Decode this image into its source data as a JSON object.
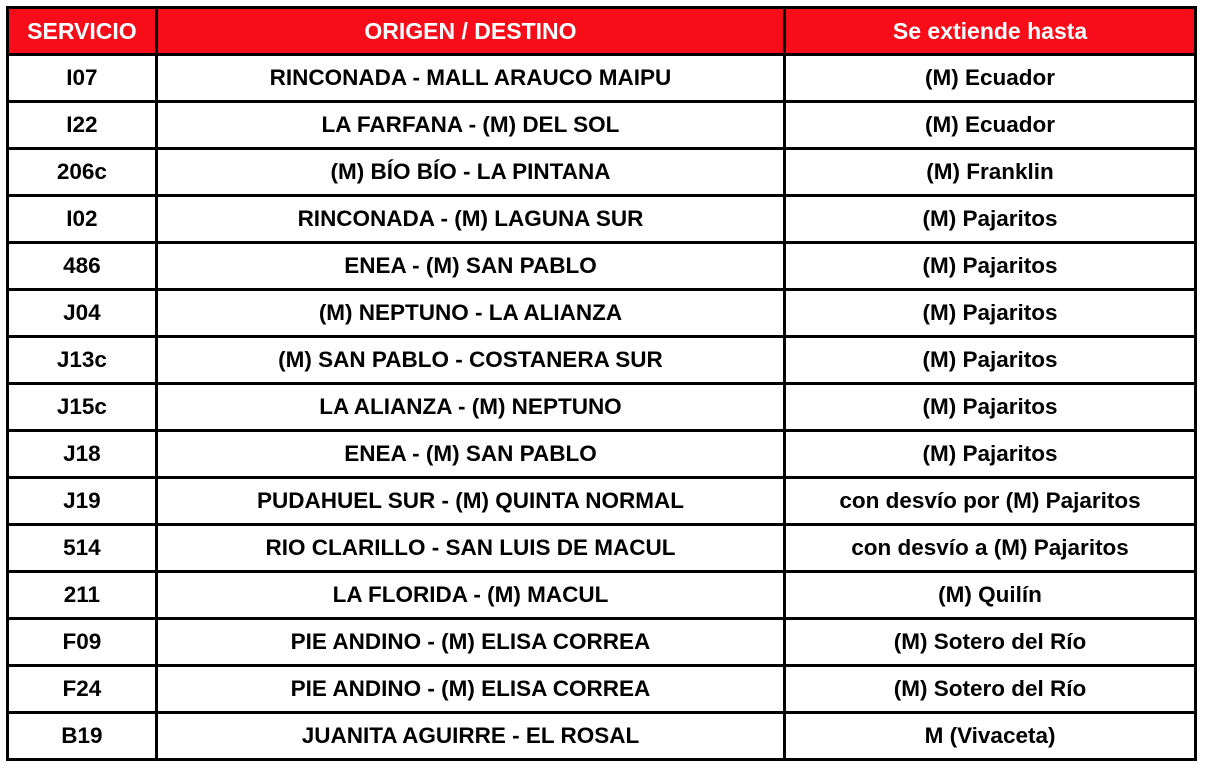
{
  "colors": {
    "header_bg": "#f70d1a",
    "header_text": "#ffffff",
    "border": "#000000"
  },
  "headers": [
    "SERVICIO",
    "ORIGEN / DESTINO",
    "Se extiende hasta"
  ],
  "rows": [
    [
      "I07",
      "RINCONADA - MALL ARAUCO MAIPU",
      "(M) Ecuador"
    ],
    [
      "I22",
      "LA FARFANA - (M) DEL SOL",
      "(M) Ecuador"
    ],
    [
      "206c",
      "(M) BÍO BÍO - LA PINTANA",
      "(M) Franklin"
    ],
    [
      "I02",
      "RINCONADA - (M) LAGUNA SUR",
      "(M) Pajaritos"
    ],
    [
      "486",
      "ENEA - (M) SAN PABLO",
      "(M) Pajaritos"
    ],
    [
      "J04",
      "(M) NEPTUNO - LA ALIANZA",
      "(M) Pajaritos"
    ],
    [
      "J13c",
      "(M) SAN PABLO - COSTANERA SUR",
      "(M) Pajaritos"
    ],
    [
      "J15c",
      "LA ALIANZA - (M) NEPTUNO",
      "(M) Pajaritos"
    ],
    [
      "J18",
      "ENEA - (M) SAN PABLO",
      "(M) Pajaritos"
    ],
    [
      "J19",
      "PUDAHUEL SUR - (M) QUINTA NORMAL",
      "con desvío por (M) Pajaritos"
    ],
    [
      "514",
      "RIO CLARILLO - SAN LUIS DE MACUL",
      "con desvío a (M) Pajaritos"
    ],
    [
      "211",
      "LA FLORIDA - (M) MACUL",
      "(M) Quilín"
    ],
    [
      "F09",
      "PIE ANDINO - (M) ELISA CORREA",
      "(M) Sotero del Río"
    ],
    [
      "F24",
      "PIE ANDINO - (M) ELISA CORREA",
      "(M) Sotero del Río"
    ],
    [
      "B19",
      "JUANITA AGUIRRE - EL ROSAL",
      "M (Vivaceta)"
    ]
  ]
}
